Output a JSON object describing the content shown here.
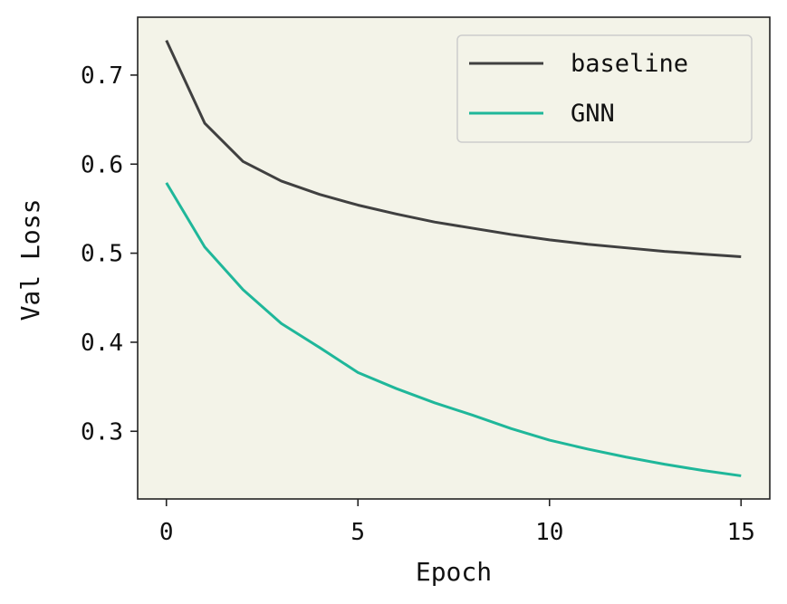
{
  "chart_data": {
    "type": "line",
    "xlabel": "Epoch",
    "ylabel": "Val Loss",
    "xlim": [
      -0.75,
      15.75
    ],
    "ylim": [
      0.224,
      0.765
    ],
    "xticks": [
      0,
      5,
      10,
      15
    ],
    "xtick_labels": [
      "0",
      "5",
      "10",
      "15"
    ],
    "yticks": [
      0.3,
      0.4,
      0.5,
      0.6,
      0.7
    ],
    "ytick_labels": [
      "0.3",
      "0.4",
      "0.5",
      "0.6",
      "0.7"
    ],
    "grid": false,
    "legend_position": "top-right",
    "background_color": "#f3f3e8",
    "x": [
      0,
      1,
      2,
      3,
      4,
      5,
      6,
      7,
      8,
      9,
      10,
      11,
      12,
      13,
      14,
      15
    ],
    "series": [
      {
        "name": "baseline",
        "color": "#404040",
        "values": [
          0.739,
          0.646,
          0.603,
          0.581,
          0.566,
          0.554,
          0.544,
          0.535,
          0.528,
          0.521,
          0.515,
          0.51,
          0.506,
          0.502,
          0.499,
          0.496
        ]
      },
      {
        "name": "GNN",
        "color": "#1fb79a",
        "values": [
          0.579,
          0.507,
          0.459,
          0.421,
          0.394,
          0.366,
          0.348,
          0.332,
          0.318,
          0.303,
          0.29,
          0.28,
          0.271,
          0.263,
          0.256,
          0.25
        ]
      }
    ]
  }
}
